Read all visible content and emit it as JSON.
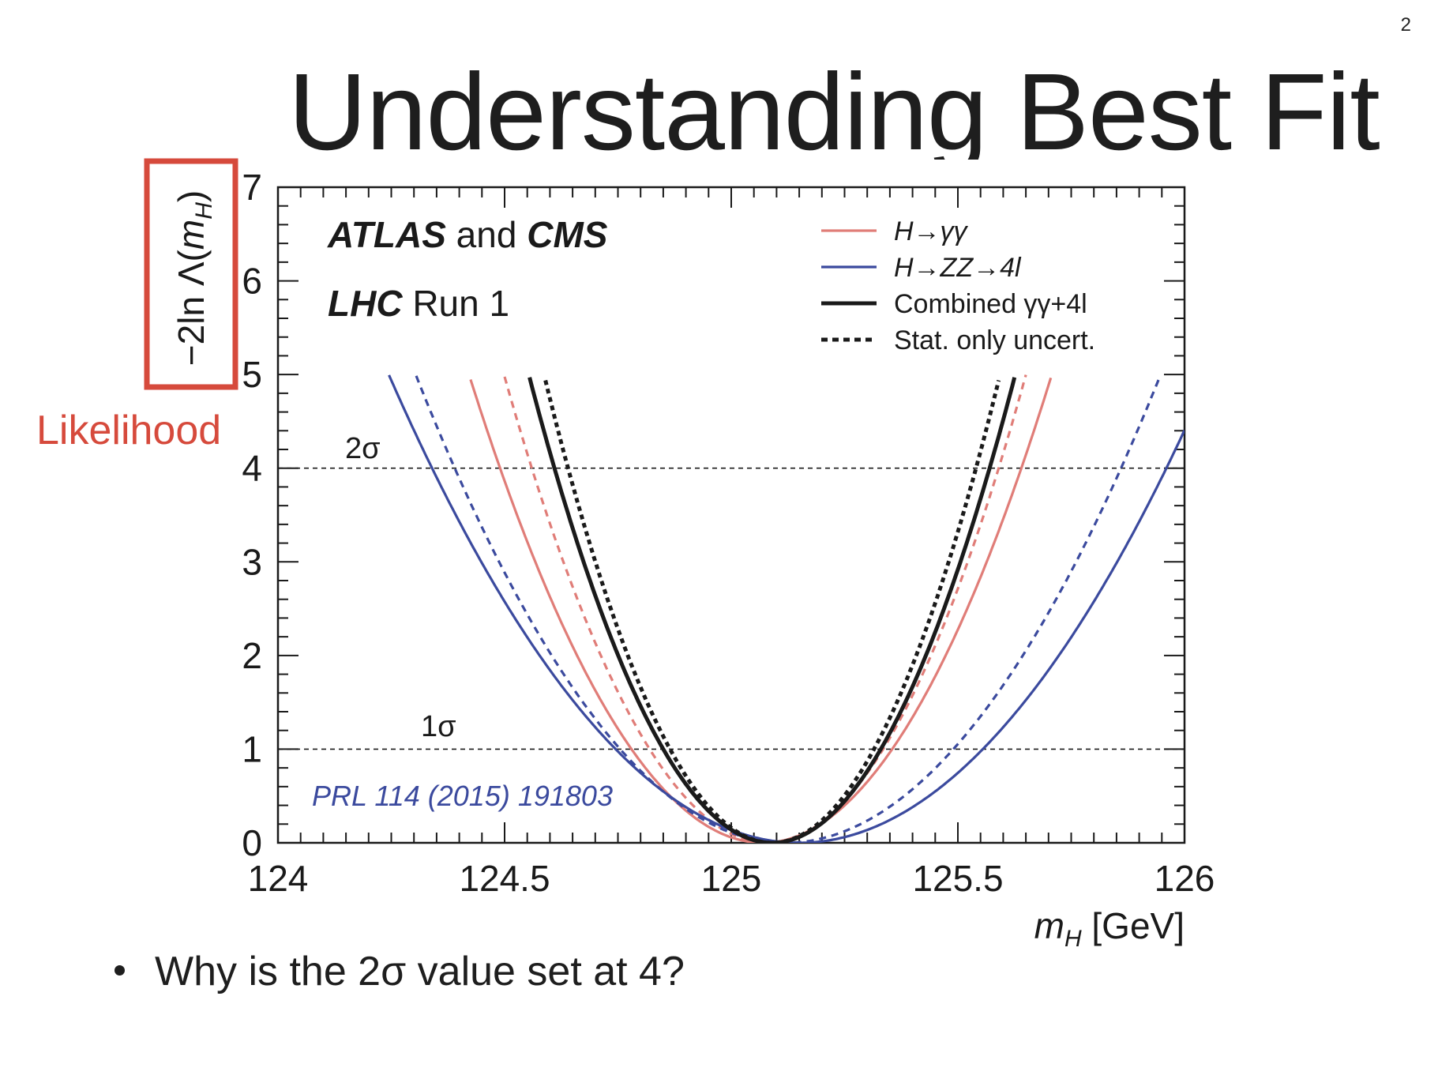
{
  "slide": {
    "number": "2",
    "title": "Understanding Best Fit",
    "bullet": "Why is the 2σ value set at 4?",
    "annotation": {
      "label": "Likelihood",
      "color": "#d64a3c"
    }
  },
  "chart_data": {
    "type": "line",
    "xlabel": "m_H [GeV]",
    "ylabel": "−2ln Λ(m_H)",
    "xlim": [
      124,
      126
    ],
    "ylim": [
      0,
      7
    ],
    "x_ticks": [
      "124",
      "124.5",
      "125",
      "125.5",
      "126"
    ],
    "y_ticks": [
      "0",
      "1",
      "2",
      "3",
      "4",
      "5",
      "6",
      "7"
    ],
    "texts": {
      "experiment_bold_1": "ATLAS",
      "experiment_join": " and ",
      "experiment_bold_2": "CMS",
      "run_bold": "LHC",
      "run_rest": " Run 1",
      "reference": "PRL 114 (2015) 191803",
      "sigma2": "2σ",
      "sigma1": "1σ"
    },
    "reference_lines": [
      {
        "label": "2σ",
        "y": 4
      },
      {
        "label": "1σ",
        "y": 1
      }
    ],
    "legend": {
      "placement": "top-right",
      "entries": [
        {
          "label": "H→γγ",
          "color": "#e07d78",
          "style": "solid"
        },
        {
          "label": "H→ZZ→4l",
          "color": "#3b4a9e",
          "style": "solid"
        },
        {
          "label": "Combined γγ+4l",
          "color": "#1a1a1a",
          "style": "solid"
        },
        {
          "label": "Stat. only uncert.",
          "color": "#1a1a1a",
          "style": "dashed"
        }
      ]
    },
    "series": [
      {
        "name": "H→γγ",
        "style": "solid",
        "color": "#e07d78",
        "best_fit": 125.07,
        "x_at_2sigma": [
          124.49,
          125.64
        ]
      },
      {
        "name": "H→γγ",
        "style": "dashed",
        "color": "#e07d78",
        "best_fit": 125.08,
        "x_at_2sigma": [
          124.56,
          125.59
        ]
      },
      {
        "name": "H→ZZ→4l",
        "style": "solid",
        "color": "#3b4a9e",
        "best_fit": 125.15,
        "x_at_2sigma": [
          124.34,
          125.96
        ]
      },
      {
        "name": "H→ZZ→4l",
        "style": "dashed",
        "color": "#3b4a9e",
        "best_fit": 125.12,
        "x_at_2sigma": [
          124.39,
          125.86
        ]
      },
      {
        "name": "Combined γγ+4l",
        "style": "solid",
        "color": "#1a1a1a",
        "best_fit": 125.09,
        "x_at_2sigma": [
          124.61,
          125.57
        ]
      },
      {
        "name": "Combined γγ+4l",
        "style": "dashed",
        "color": "#1a1a1a",
        "best_fit": 125.09,
        "x_at_2sigma": [
          124.64,
          125.54
        ]
      }
    ]
  }
}
